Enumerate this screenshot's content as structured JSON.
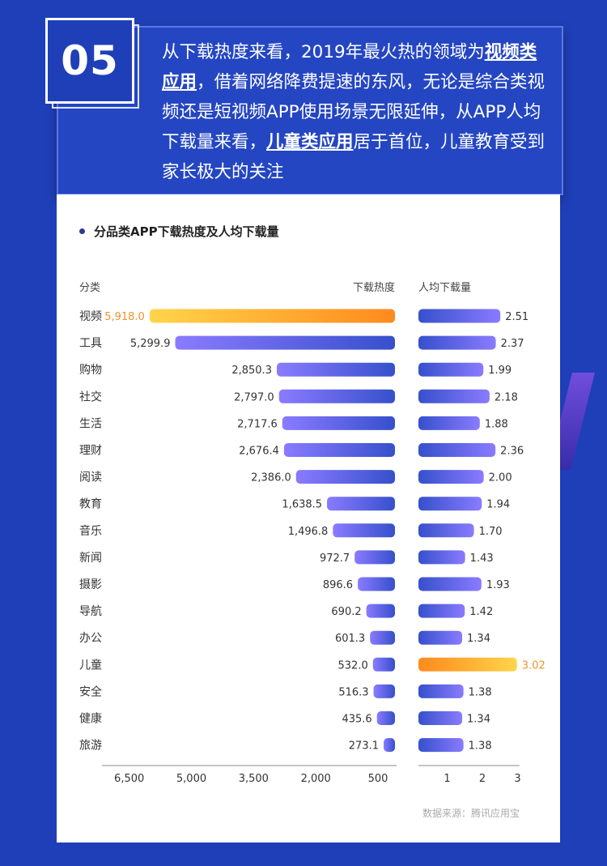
{
  "header": {
    "number": "05",
    "text_parts": [
      {
        "t": "从下载热度来看，2019年最火热的领域为",
        "hl": false
      },
      {
        "t": "视频类应用",
        "hl": true
      },
      {
        "t": "，借着网络降费提速的东风，无论是综合类视频还是短视频APP使用场景无限延伸，从APP人均下载量来看，",
        "hl": false
      },
      {
        "t": "儿童类应用",
        "hl": true
      },
      {
        "t": "居于首位，儿童教育受到家长极大的关注",
        "hl": false
      }
    ]
  },
  "source": "数据来源：腾讯应用宝",
  "colors": {
    "page_bg": "#1f3fb8",
    "bar_left": "#8a7bff",
    "bar_right": "#3650cc",
    "highlight_start": "#ffd54a",
    "highlight_end": "#ff8a1e",
    "highlight_label": "#f0932a"
  },
  "chart_data": {
    "type": "bar",
    "title": "分品类APP下载热度及人均下载量",
    "category_header": "分类",
    "categories": [
      "视频",
      "工具",
      "购物",
      "社交",
      "生活",
      "理财",
      "阅读",
      "教育",
      "音乐",
      "新闻",
      "摄影",
      "导航",
      "办公",
      "儿童",
      "安全",
      "健康",
      "旅游"
    ],
    "series": [
      {
        "name": "下载热度",
        "values": [
          5918.0,
          5299.9,
          2850.3,
          2797.0,
          2717.6,
          2676.4,
          2386.0,
          1638.5,
          1496.8,
          972.7,
          896.6,
          690.2,
          601.3,
          532.0,
          516.3,
          435.6,
          273.1
        ],
        "labels": [
          "5,918.0",
          "5,299.9",
          "2,850.3",
          "2,797.0",
          "2,717.6",
          "2,676.4",
          "2,386.0",
          "1,638.5",
          "1,496.8",
          "972.7",
          "896.6",
          "690.2",
          "601.3",
          "532.0",
          "516.3",
          "435.6",
          "273.1"
        ],
        "axis_ticks": [
          6500,
          5000,
          3500,
          2000,
          500
        ],
        "axis_tick_labels": [
          "6,500",
          "5,000",
          "3,500",
          "2,000",
          "500"
        ],
        "xlim": [
          0,
          6500
        ],
        "direction": "right-to-left",
        "highlight": "视频"
      },
      {
        "name": "人均下载量",
        "values": [
          2.51,
          2.37,
          1.99,
          2.18,
          1.88,
          2.36,
          2.0,
          1.94,
          1.7,
          1.43,
          1.93,
          1.42,
          1.34,
          3.02,
          1.38,
          1.34,
          1.38
        ],
        "labels": [
          "2.51",
          "2.37",
          "1.99",
          "2.18",
          "1.88",
          "2.36",
          "2.00",
          "1.94",
          "1.70",
          "1.43",
          "1.93",
          "1.42",
          "1.34",
          "3.02",
          "1.38",
          "1.34",
          "1.38"
        ],
        "axis_ticks": [
          1,
          2,
          3
        ],
        "axis_tick_labels": [
          "1",
          "2",
          "3"
        ],
        "xlim": [
          0,
          3
        ],
        "highlight": "儿童"
      }
    ]
  }
}
